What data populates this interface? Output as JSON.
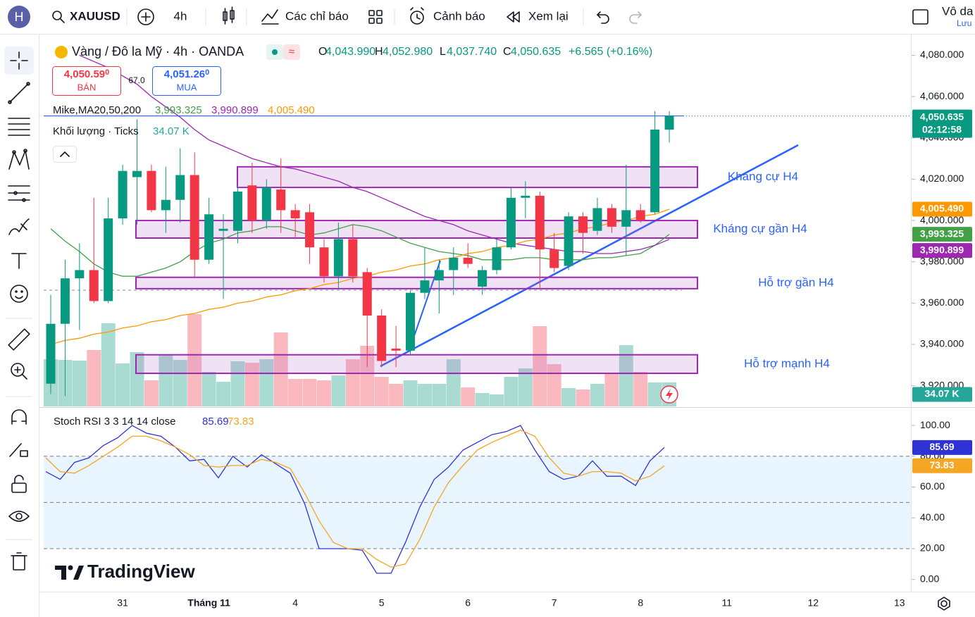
{
  "toolbar": {
    "avatar": "H",
    "symbol": "XAUUSD",
    "interval": "4h",
    "indicators": "Các chỉ báo",
    "alerts": "Cảnh báo",
    "replay": "Xem lại",
    "account": "Vô da",
    "save": "Lưu"
  },
  "legend": {
    "title": "Vàng / Đô la Mỹ · 4h · OANDA",
    "ohlc": [
      {
        "key": "O",
        "value": "4,043.990"
      },
      {
        "key": "H",
        "value": "4,052.980"
      },
      {
        "key": "L",
        "value": "4,037.740"
      },
      {
        "key": "C",
        "value": "4,050.635"
      }
    ],
    "change": "+6.565 (+0.16%)",
    "sell": {
      "price": "4,050.59",
      "tail": "0",
      "label": "BÁN"
    },
    "spread": "67.0",
    "buy": {
      "price": "4,051.26",
      "tail": "0",
      "label": "MUA"
    },
    "ma": {
      "name": "Mike,MA20,50,200",
      "values": [
        "3,993.325",
        "3,990.899",
        "4,005.490"
      ]
    },
    "volume": {
      "name": "Khối lượng · Ticks",
      "value": "34.07 K"
    },
    "stoch": {
      "name": "Stoch RSI 3 3 14 14 close",
      "values": [
        "85.69",
        "73.83"
      ]
    }
  },
  "axis_labels": {
    "last_price": "4,050.635",
    "countdown": "02:12:58",
    "ma": [
      "3,993.325",
      "3,990.899",
      "4,005.490"
    ],
    "volume": "34.07 K",
    "stoch": [
      "85.69",
      "73.83"
    ]
  },
  "brand": "TradingView",
  "chart_data": {
    "type": "candlestick",
    "x_labels": [
      "31",
      "Tháng 11",
      "4",
      "5",
      "6",
      "7",
      "8",
      "11",
      "12",
      "13"
    ],
    "open": [
      3921,
      3950,
      3972,
      3976,
      3961,
      4001,
      4021,
      4024,
      4005,
      4010,
      4022,
      3981,
      3995,
      3995,
      4017,
      4000,
      4015,
      4005,
      4004,
      3987,
      3973,
      3991,
      3975,
      3954,
      3938,
      3937,
      3965,
      3971,
      3976,
      3982,
      3968,
      3976,
      3987,
      4011,
      4012,
      3986,
      3978,
      4002,
      3995,
      4006,
      3997,
      4005,
      4004,
      4043.99
    ],
    "high": [
      3964,
      3981,
      3989,
      4011,
      4011,
      4027,
      4049,
      4027,
      4026,
      4035,
      4033,
      4011,
      4003,
      4017,
      4028,
      4020,
      4030,
      4008,
      4008,
      3991,
      3999,
      3998,
      3977,
      3957,
      3949,
      3966,
      3987,
      3981,
      3987,
      3989,
      3978,
      3991,
      4016,
      4019,
      4014,
      3994,
      4004,
      4004,
      4011,
      4008,
      4027,
      4008,
      4053,
      4052.98
    ],
    "low": [
      3916,
      3915,
      3947,
      3960,
      3960,
      3998,
      3998,
      4004,
      3994,
      3999,
      3972,
      3979,
      3962,
      3989,
      3994,
      3996,
      3994,
      3991,
      3979,
      3970,
      3967,
      3970,
      3929,
      3929,
      3929,
      3935,
      3962,
      3955,
      3964,
      3977,
      3964,
      3974,
      3986,
      4001,
      3967,
      3975,
      3976,
      3984,
      3993,
      3994,
      3983,
      3999,
      4003,
      4037.74
    ],
    "close": [
      3950,
      3972,
      3976,
      3961,
      4001,
      4024,
      4024,
      4005,
      4010,
      4022,
      3981,
      4003,
      3996,
      4014,
      4000,
      4016,
      4005,
      4001,
      3987,
      3973,
      3991,
      3973,
      3954,
      3932,
      3937,
      3965,
      3971,
      3976,
      3982,
      3979,
      3976,
      3987,
      4011,
      4012,
      3986,
      3977,
      4002,
      3994,
      4006,
      3997,
      4005,
      4000,
      4044,
      4050.635
    ],
    "volume": [
      67,
      66,
      65,
      80,
      118,
      61,
      77,
      37,
      74,
      66,
      131,
      49,
      35,
      64,
      62,
      67,
      105,
      39,
      39,
      37,
      44,
      67,
      86,
      42,
      32,
      37,
      32,
      32,
      67,
      27,
      19,
      17,
      42,
      54,
      114,
      60,
      26,
      24,
      32,
      47,
      87,
      49,
      34,
      34.07
    ],
    "up_color": "#089981",
    "down_color": "#f23645",
    "ma": [
      {
        "color": "#43a047",
        "values": [
          3996,
          3990,
          3985,
          3979,
          3975,
          3973,
          3973,
          3975,
          3977,
          3980,
          3985,
          3989,
          3991,
          3994,
          3995,
          3997,
          3997,
          3995,
          3993,
          3994,
          3996,
          3998,
          3997,
          3995,
          3992,
          3989,
          3987,
          3985,
          3984,
          3983,
          3981,
          3981,
          3981,
          3982,
          3982,
          3981,
          3981,
          3981,
          3982,
          3982,
          3983,
          3984,
          3988,
          3993.325
        ]
      },
      {
        "color": "#9c27b0",
        "values": [
          null,
          null,
          4080,
          4077,
          4074,
          4070,
          4066,
          4060,
          4055,
          4050,
          4044,
          4039,
          4036,
          4033,
          4030,
          4028,
          4026,
          4025,
          4023,
          4021,
          4019,
          4016,
          4014,
          4011,
          4008,
          4005,
          4002,
          4000,
          3998,
          3995,
          3993,
          3991,
          3989,
          3988,
          3987,
          3986,
          3985,
          3985,
          3984,
          3984,
          3985,
          3986,
          3988,
          3990.899
        ]
      },
      {
        "color": "#ff9800",
        "values": [
          3940,
          3942,
          3943,
          3945,
          3946,
          3948,
          3949,
          3951,
          3952,
          3954,
          3955,
          3957,
          3958,
          3960,
          3961,
          3963,
          3964,
          3966,
          3967,
          3969,
          3970,
          3972,
          3973,
          3975,
          3976,
          3978,
          3979,
          3981,
          3982,
          3984,
          3985,
          3987,
          3988,
          3990,
          3991,
          3993,
          3994,
          3996,
          3997,
          3999,
          4000,
          4002,
          4003,
          4005.49
        ]
      }
    ],
    "zones": [
      {
        "label": "Kháng cự H4",
        "high": 4026,
        "low": 4016
      },
      {
        "label": "Kháng cự gần H4",
        "high": 4000,
        "low": 3991.5
      },
      {
        "label": "Hỗ trợ gần H4",
        "high": 3972.5,
        "low": 3967
      },
      {
        "label": "Hỗ trợ mạnh H4",
        "high": 3935,
        "low": 3926
      }
    ],
    "ylim": [
      3910,
      4088
    ],
    "yticks": [
      {
        "value": 4080,
        "label": "4,080.000"
      },
      {
        "value": 4060,
        "label": "4,060.000"
      },
      {
        "value": 4040,
        "label": "4,040.000"
      },
      {
        "value": 4020,
        "label": "4,020.000"
      },
      {
        "value": 4000,
        "label": "4,000.000"
      },
      {
        "value": 3980,
        "label": "3,980.000"
      },
      {
        "value": 3960,
        "label": "3,960.000"
      },
      {
        "value": 3940,
        "label": "3,940.000"
      },
      {
        "value": 3920,
        "label": "3,920.000"
      }
    ],
    "stoch": {
      "ylim": [
        -7,
        111
      ],
      "yticks": [
        {
          "value": 100,
          "label": "100.00"
        },
        {
          "value": 80,
          "label": "80.00"
        },
        {
          "value": 60,
          "label": "60.00"
        },
        {
          "value": 40,
          "label": "40.00"
        },
        {
          "value": 20,
          "label": "20.00"
        },
        {
          "value": 0,
          "label": "0.00"
        }
      ],
      "bands": [
        80,
        50,
        20
      ],
      "k": {
        "color": "#2f33d6",
        "values": [
          70,
          65,
          76,
          79,
          87,
          92,
          100,
          95,
          93,
          86,
          77,
          78,
          66,
          80,
          73,
          81,
          75,
          69,
          49,
          20,
          20,
          20,
          19,
          4,
          4,
          24,
          47,
          65,
          73,
          84,
          89,
          94,
          96,
          100,
          84,
          70,
          65,
          67,
          77,
          67,
          67,
          61,
          77,
          85.69
        ]
      },
      "d": {
        "color": "#f5a623",
        "values": [
          79,
          70,
          69,
          74,
          80,
          86,
          93,
          93,
          90,
          86,
          81,
          74,
          73,
          74,
          74,
          78,
          76,
          72,
          56,
          38,
          24,
          20,
          20,
          13,
          8,
          10,
          26,
          47,
          63,
          74,
          84,
          89,
          93,
          97,
          93,
          79,
          69,
          67,
          70,
          70,
          69,
          64,
          67,
          73.83
        ]
      }
    }
  }
}
